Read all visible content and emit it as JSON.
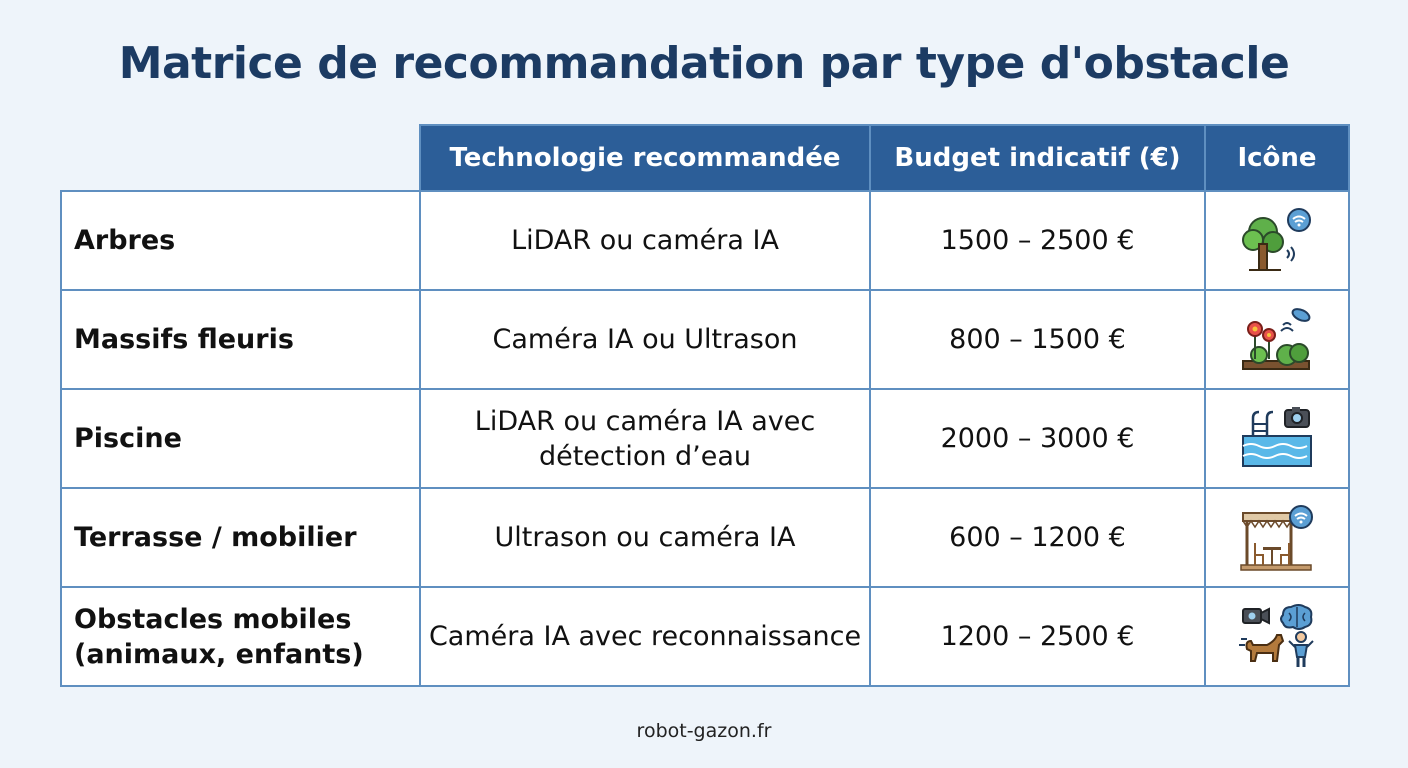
{
  "title": "Matrice de recommandation par type d'obstacle",
  "table": {
    "headers": {
      "technology": "Technologie recommandée",
      "budget": "Budget indicatif (€)",
      "icon": "Icône"
    },
    "rows": [
      {
        "obstacle": "Arbres",
        "technology": "LiDAR ou caméra IA",
        "budget": "1500 – 2500 €",
        "icon": "tree-sensor-icon"
      },
      {
        "obstacle": "Massifs fleuris",
        "technology": "Caméra IA ou Ultrason",
        "budget": "800 – 1500 €",
        "icon": "flowerbed-sensor-icon"
      },
      {
        "obstacle": "Piscine",
        "technology": "LiDAR ou caméra IA avec détection d’eau",
        "budget": "2000 – 3000 €",
        "icon": "pool-camera-icon"
      },
      {
        "obstacle": "Terrasse / mobilier",
        "technology": "Ultrason ou caméra IA",
        "budget": "600 – 1200 €",
        "icon": "patio-furniture-sensor-icon"
      },
      {
        "obstacle": "Obstacles mobiles (animaux, enfants)",
        "technology": "Caméra IA avec reconnaissance",
        "budget": "1200 – 2500 €",
        "icon": "camera-brain-dog-child-icon"
      }
    ]
  },
  "footer": "robot-gazon.fr"
}
